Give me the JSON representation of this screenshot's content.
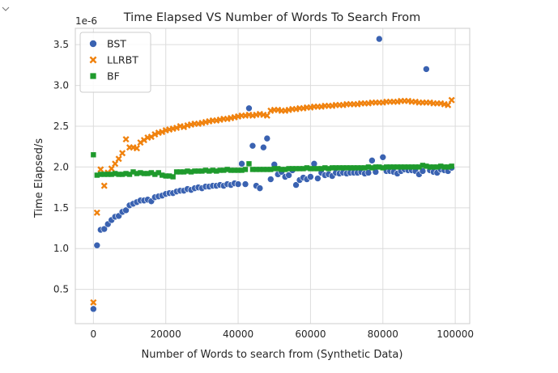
{
  "cell": {
    "collapse_icon": "chevron-down-icon"
  },
  "chart_data": {
    "type": "scatter",
    "title": "Time Elapsed VS Number of Words To Search From",
    "xlabel": "Number of Words to search from (Synthetic Data)",
    "ylabel": "Time Elapsed/s",
    "y_offset_label": "1e-6",
    "xlim": [
      -5000,
      104000
    ],
    "ylim": [
      0.08,
      3.7
    ],
    "xticks": [
      0,
      20000,
      40000,
      60000,
      80000,
      100000
    ],
    "xtick_labels": [
      "0",
      "20000",
      "40000",
      "60000",
      "80000",
      "100000"
    ],
    "yticks": [
      0.5,
      1.0,
      1.5,
      2.0,
      2.5,
      3.0,
      3.5
    ],
    "ytick_labels": [
      "0.5",
      "1.0",
      "1.5",
      "2.0",
      "2.5",
      "3.0",
      "3.5"
    ],
    "grid": true,
    "legend_position": "top-left",
    "series": [
      {
        "name": "BST",
        "marker": "circle",
        "color": "#3a62b1",
        "points": [
          [
            0,
            0.26
          ],
          [
            1000,
            1.04
          ],
          [
            2000,
            1.23
          ],
          [
            3000,
            1.24
          ],
          [
            4000,
            1.3
          ],
          [
            5000,
            1.35
          ],
          [
            6000,
            1.39
          ],
          [
            7000,
            1.4
          ],
          [
            8000,
            1.45
          ],
          [
            9000,
            1.47
          ],
          [
            10000,
            1.53
          ],
          [
            11000,
            1.55
          ],
          [
            12000,
            1.57
          ],
          [
            13000,
            1.59
          ],
          [
            14000,
            1.59
          ],
          [
            15000,
            1.6
          ],
          [
            16000,
            1.58
          ],
          [
            17000,
            1.63
          ],
          [
            18000,
            1.64
          ],
          [
            19000,
            1.65
          ],
          [
            20000,
            1.67
          ],
          [
            21000,
            1.68
          ],
          [
            22000,
            1.68
          ],
          [
            23000,
            1.7
          ],
          [
            24000,
            1.71
          ],
          [
            25000,
            1.71
          ],
          [
            26000,
            1.73
          ],
          [
            27000,
            1.72
          ],
          [
            28000,
            1.74
          ],
          [
            29000,
            1.75
          ],
          [
            30000,
            1.74
          ],
          [
            31000,
            1.76
          ],
          [
            32000,
            1.76
          ],
          [
            33000,
            1.77
          ],
          [
            34000,
            1.77
          ],
          [
            35000,
            1.78
          ],
          [
            36000,
            1.77
          ],
          [
            37000,
            1.79
          ],
          [
            38000,
            1.78
          ],
          [
            39000,
            1.8
          ],
          [
            40000,
            1.79
          ],
          [
            41000,
            2.04
          ],
          [
            42000,
            1.79
          ],
          [
            43000,
            2.72
          ],
          [
            44000,
            2.26
          ],
          [
            45000,
            1.77
          ],
          [
            46000,
            1.74
          ],
          [
            47000,
            2.24
          ],
          [
            48000,
            2.35
          ],
          [
            49000,
            1.85
          ],
          [
            50000,
            2.03
          ],
          [
            51000,
            1.91
          ],
          [
            52000,
            1.94
          ],
          [
            53000,
            1.88
          ],
          [
            54000,
            1.9
          ],
          [
            55000,
            1.96
          ],
          [
            56000,
            1.78
          ],
          [
            57000,
            1.84
          ],
          [
            58000,
            1.87
          ],
          [
            59000,
            1.85
          ],
          [
            60000,
            1.88
          ],
          [
            61000,
            2.04
          ],
          [
            62000,
            1.86
          ],
          [
            63000,
            1.93
          ],
          [
            64000,
            1.9
          ],
          [
            65000,
            1.91
          ],
          [
            66000,
            1.89
          ],
          [
            67000,
            1.93
          ],
          [
            68000,
            1.92
          ],
          [
            69000,
            1.93
          ],
          [
            70000,
            1.92
          ],
          [
            71000,
            1.93
          ],
          [
            72000,
            1.93
          ],
          [
            73000,
            1.93
          ],
          [
            74000,
            1.94
          ],
          [
            75000,
            1.92
          ],
          [
            76000,
            1.93
          ],
          [
            77000,
            2.08
          ],
          [
            78000,
            1.94
          ],
          [
            79000,
            3.57
          ],
          [
            80000,
            2.12
          ],
          [
            81000,
            1.95
          ],
          [
            82000,
            1.95
          ],
          [
            83000,
            1.94
          ],
          [
            84000,
            1.92
          ],
          [
            85000,
            1.95
          ],
          [
            86000,
            1.97
          ],
          [
            87000,
            1.96
          ],
          [
            88000,
            1.96
          ],
          [
            89000,
            1.95
          ],
          [
            90000,
            1.91
          ],
          [
            91000,
            1.95
          ],
          [
            92000,
            3.2
          ],
          [
            93000,
            1.96
          ],
          [
            94000,
            1.94
          ],
          [
            95000,
            1.93
          ],
          [
            96000,
            1.97
          ],
          [
            97000,
            1.96
          ],
          [
            98000,
            1.95
          ],
          [
            99000,
            1.99
          ]
        ]
      },
      {
        "name": "LLRBT",
        "marker": "x",
        "color": "#f0820e",
        "points": [
          [
            0,
            0.34
          ],
          [
            1000,
            1.44
          ],
          [
            2000,
            1.97
          ],
          [
            3000,
            1.77
          ],
          [
            4000,
            1.93
          ],
          [
            5000,
            1.98
          ],
          [
            6000,
            2.04
          ],
          [
            7000,
            2.1
          ],
          [
            8000,
            2.17
          ],
          [
            9000,
            2.34
          ],
          [
            10000,
            2.24
          ],
          [
            11000,
            2.24
          ],
          [
            12000,
            2.23
          ],
          [
            13000,
            2.3
          ],
          [
            14000,
            2.33
          ],
          [
            15000,
            2.36
          ],
          [
            16000,
            2.37
          ],
          [
            17000,
            2.4
          ],
          [
            18000,
            2.42
          ],
          [
            19000,
            2.43
          ],
          [
            20000,
            2.45
          ],
          [
            21000,
            2.46
          ],
          [
            22000,
            2.47
          ],
          [
            23000,
            2.48
          ],
          [
            24000,
            2.5
          ],
          [
            25000,
            2.49
          ],
          [
            26000,
            2.51
          ],
          [
            27000,
            2.52
          ],
          [
            28000,
            2.53
          ],
          [
            29000,
            2.53
          ],
          [
            30000,
            2.54
          ],
          [
            31000,
            2.55
          ],
          [
            32000,
            2.56
          ],
          [
            33000,
            2.57
          ],
          [
            34000,
            2.57
          ],
          [
            35000,
            2.58
          ],
          [
            36000,
            2.59
          ],
          [
            37000,
            2.59
          ],
          [
            38000,
            2.6
          ],
          [
            39000,
            2.61
          ],
          [
            40000,
            2.62
          ],
          [
            41000,
            2.63
          ],
          [
            42000,
            2.63
          ],
          [
            43000,
            2.64
          ],
          [
            44000,
            2.63
          ],
          [
            45000,
            2.64
          ],
          [
            46000,
            2.65
          ],
          [
            47000,
            2.64
          ],
          [
            48000,
            2.63
          ],
          [
            49000,
            2.69
          ],
          [
            50000,
            2.7
          ],
          [
            51000,
            2.7
          ],
          [
            52000,
            2.69
          ],
          [
            53000,
            2.69
          ],
          [
            54000,
            2.7
          ],
          [
            55000,
            2.71
          ],
          [
            56000,
            2.71
          ],
          [
            57000,
            2.72
          ],
          [
            58000,
            2.72
          ],
          [
            59000,
            2.73
          ],
          [
            60000,
            2.73
          ],
          [
            61000,
            2.74
          ],
          [
            62000,
            2.74
          ],
          [
            63000,
            2.74
          ],
          [
            64000,
            2.75
          ],
          [
            65000,
            2.75
          ],
          [
            66000,
            2.75
          ],
          [
            67000,
            2.76
          ],
          [
            68000,
            2.76
          ],
          [
            69000,
            2.76
          ],
          [
            70000,
            2.77
          ],
          [
            71000,
            2.77
          ],
          [
            72000,
            2.77
          ],
          [
            73000,
            2.77
          ],
          [
            74000,
            2.78
          ],
          [
            75000,
            2.78
          ],
          [
            76000,
            2.78
          ],
          [
            77000,
            2.79
          ],
          [
            78000,
            2.79
          ],
          [
            79000,
            2.79
          ],
          [
            80000,
            2.79
          ],
          [
            81000,
            2.8
          ],
          [
            82000,
            2.8
          ],
          [
            83000,
            2.8
          ],
          [
            84000,
            2.8
          ],
          [
            85000,
            2.81
          ],
          [
            86000,
            2.81
          ],
          [
            87000,
            2.81
          ],
          [
            88000,
            2.8
          ],
          [
            89000,
            2.8
          ],
          [
            90000,
            2.79
          ],
          [
            91000,
            2.79
          ],
          [
            92000,
            2.79
          ],
          [
            93000,
            2.79
          ],
          [
            94000,
            2.78
          ],
          [
            95000,
            2.78
          ],
          [
            96000,
            2.78
          ],
          [
            97000,
            2.77
          ],
          [
            98000,
            2.76
          ],
          [
            99000,
            2.82
          ]
        ]
      },
      {
        "name": "BF",
        "marker": "square",
        "color": "#1e9a2c",
        "points": [
          [
            0,
            2.15
          ],
          [
            1000,
            1.9
          ],
          [
            2000,
            1.91
          ],
          [
            3000,
            1.91
          ],
          [
            4000,
            1.91
          ],
          [
            5000,
            1.91
          ],
          [
            6000,
            1.92
          ],
          [
            7000,
            1.91
          ],
          [
            8000,
            1.91
          ],
          [
            9000,
            1.92
          ],
          [
            10000,
            1.91
          ],
          [
            11000,
            1.94
          ],
          [
            12000,
            1.92
          ],
          [
            13000,
            1.93
          ],
          [
            14000,
            1.92
          ],
          [
            15000,
            1.92
          ],
          [
            16000,
            1.93
          ],
          [
            17000,
            1.91
          ],
          [
            18000,
            1.93
          ],
          [
            19000,
            1.9
          ],
          [
            20000,
            1.89
          ],
          [
            21000,
            1.89
          ],
          [
            22000,
            1.88
          ],
          [
            23000,
            1.94
          ],
          [
            24000,
            1.94
          ],
          [
            25000,
            1.94
          ],
          [
            26000,
            1.95
          ],
          [
            27000,
            1.94
          ],
          [
            28000,
            1.95
          ],
          [
            29000,
            1.95
          ],
          [
            30000,
            1.95
          ],
          [
            31000,
            1.96
          ],
          [
            32000,
            1.95
          ],
          [
            33000,
            1.96
          ],
          [
            34000,
            1.95
          ],
          [
            35000,
            1.96
          ],
          [
            36000,
            1.96
          ],
          [
            37000,
            1.97
          ],
          [
            38000,
            1.96
          ],
          [
            39000,
            1.96
          ],
          [
            40000,
            1.96
          ],
          [
            41000,
            1.96
          ],
          [
            42000,
            1.97
          ],
          [
            43000,
            2.04
          ],
          [
            44000,
            1.97
          ],
          [
            45000,
            1.97
          ],
          [
            46000,
            1.97
          ],
          [
            47000,
            1.97
          ],
          [
            48000,
            1.97
          ],
          [
            49000,
            1.97
          ],
          [
            50000,
            1.98
          ],
          [
            51000,
            1.98
          ],
          [
            52000,
            1.97
          ],
          [
            53000,
            1.97
          ],
          [
            54000,
            1.98
          ],
          [
            55000,
            1.98
          ],
          [
            56000,
            1.98
          ],
          [
            57000,
            1.98
          ],
          [
            58000,
            1.98
          ],
          [
            59000,
            1.99
          ],
          [
            60000,
            1.98
          ],
          [
            61000,
            1.98
          ],
          [
            62000,
            1.98
          ],
          [
            63000,
            1.98
          ],
          [
            64000,
            1.99
          ],
          [
            65000,
            1.98
          ],
          [
            66000,
            1.99
          ],
          [
            67000,
            1.99
          ],
          [
            68000,
            1.99
          ],
          [
            69000,
            1.99
          ],
          [
            70000,
            1.99
          ],
          [
            71000,
            1.99
          ],
          [
            72000,
            1.99
          ],
          [
            73000,
            1.99
          ],
          [
            74000,
            1.99
          ],
          [
            75000,
            1.99
          ],
          [
            76000,
            2.0
          ],
          [
            77000,
            1.99
          ],
          [
            78000,
            2.0
          ],
          [
            79000,
            2.0
          ],
          [
            80000,
            1.99
          ],
          [
            81000,
            2.0
          ],
          [
            82000,
            2.0
          ],
          [
            83000,
            2.0
          ],
          [
            84000,
            2.0
          ],
          [
            85000,
            2.0
          ],
          [
            86000,
            2.0
          ],
          [
            87000,
            2.0
          ],
          [
            88000,
            2.0
          ],
          [
            89000,
            2.0
          ],
          [
            90000,
            2.0
          ],
          [
            91000,
            2.02
          ],
          [
            92000,
            2.01
          ],
          [
            93000,
            2.0
          ],
          [
            94000,
            2.0
          ],
          [
            95000,
            2.0
          ],
          [
            96000,
            2.01
          ],
          [
            97000,
            2.0
          ],
          [
            98000,
            2.0
          ],
          [
            99000,
            2.01
          ]
        ]
      }
    ]
  }
}
